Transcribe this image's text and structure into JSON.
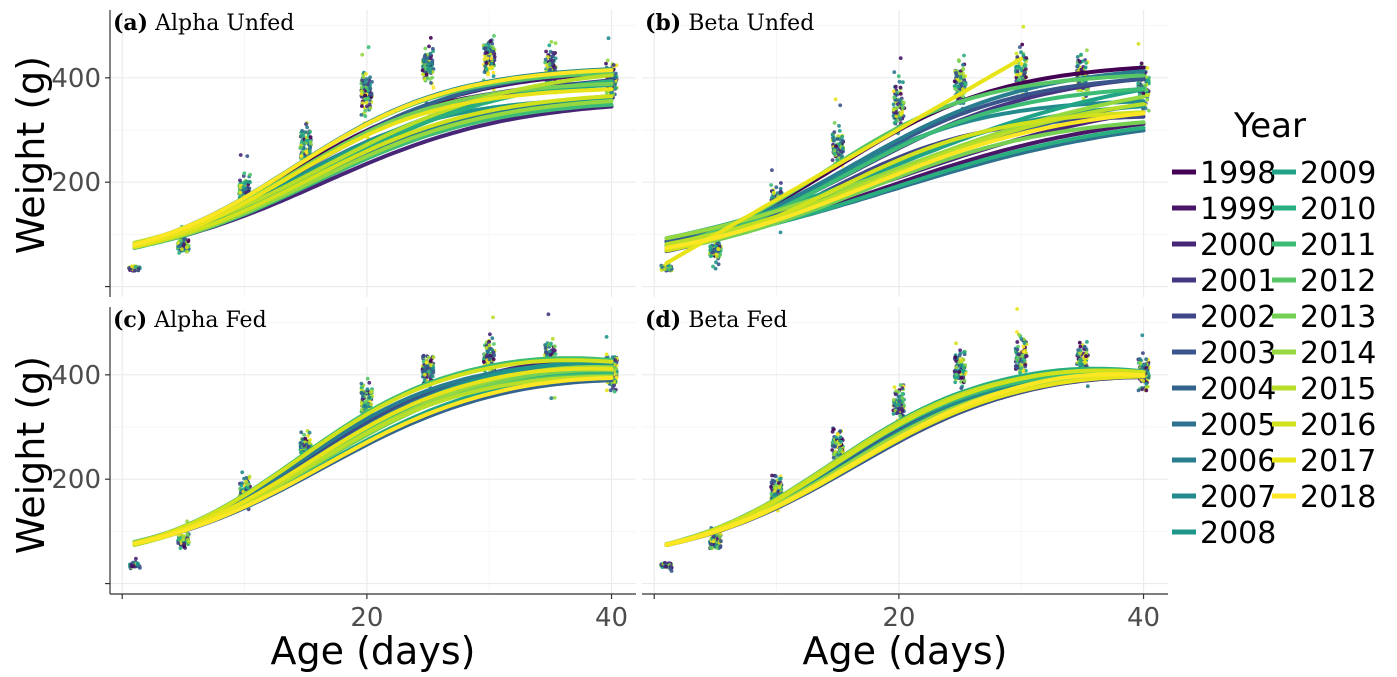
{
  "chart_data": {
    "type": "scatter",
    "description_note": "",
    "xlabel": "Age (days)",
    "ylabel": "Weight (g)",
    "xlim": [
      -1,
      42
    ],
    "ylim": [
      -20,
      530
    ],
    "x_ticks": [
      20,
      40
    ],
    "y_ticks": [
      200,
      400
    ],
    "x_sample_days": [
      1,
      5,
      10,
      15,
      20,
      25,
      30,
      35,
      40
    ],
    "grid": true,
    "legend": {
      "title": "Year",
      "placement": "right",
      "years": [
        "1998",
        "1999",
        "2000",
        "2001",
        "2002",
        "2003",
        "2004",
        "2005",
        "2006",
        "2007",
        "2008",
        "2009",
        "2010",
        "2011",
        "2012",
        "2013",
        "2014",
        "2015",
        "2016",
        "2017",
        "2018"
      ],
      "colors": [
        "#440154",
        "#481567",
        "#482677",
        "#453781",
        "#3f4788",
        "#39558c",
        "#32648e",
        "#2d718e",
        "#287d8e",
        "#238a8d",
        "#1f968b",
        "#20a386",
        "#29af7f",
        "#3cbc75",
        "#56c667",
        "#75d054",
        "#95d840",
        "#b8de29",
        "#d1e11c",
        "#e8e419",
        "#fde725"
      ]
    },
    "panels": [
      {
        "id": "a",
        "tag": "(a)",
        "name": "Alpha Unfed",
        "point_means": [
          35,
          78,
          185,
          270,
          370,
          420,
          440,
          415,
          395
        ],
        "point_spread": [
          8,
          22,
          45,
          55,
          60,
          55,
          55,
          60,
          55
        ],
        "curve": {
          "K_min": 360,
          "K_max": 425,
          "r_min": 0.125,
          "r_max": 0.16,
          "t0_min": 13.5,
          "t0_max": 16.5,
          "decline": 0.0
        }
      },
      {
        "id": "b",
        "tag": "(b)",
        "name": "Beta Unfed",
        "point_means": [
          35,
          70,
          165,
          265,
          340,
          390,
          410,
          400,
          385
        ],
        "point_spread": [
          8,
          22,
          40,
          55,
          65,
          60,
          65,
          70,
          60
        ],
        "curve": {
          "K_min": 330,
          "K_max": 430,
          "r_min": 0.09,
          "r_max": 0.16,
          "t0_min": 14.0,
          "t0_max": 20.0,
          "decline": 0.0
        }
      },
      {
        "id": "c",
        "tag": "(c)",
        "name": "Alpha Fed",
        "point_means": [
          35,
          85,
          175,
          255,
          345,
          410,
          435,
          430,
          405
        ],
        "point_spread": [
          8,
          22,
          45,
          55,
          55,
          55,
          55,
          50,
          50
        ],
        "curve": {
          "K_min": 410,
          "K_max": 450,
          "r_min": 0.135,
          "r_max": 0.16,
          "t0_min": 14.5,
          "t0_max": 16.5,
          "decline": 0.6
        }
      },
      {
        "id": "d",
        "tag": "(d)",
        "name": "Beta Fed",
        "point_means": [
          35,
          80,
          175,
          260,
          345,
          410,
          435,
          425,
          405
        ],
        "point_spread": [
          8,
          22,
          45,
          55,
          55,
          55,
          55,
          50,
          45
        ],
        "curve": {
          "K_min": 415,
          "K_max": 430,
          "r_min": 0.14,
          "r_max": 0.16,
          "t0_min": 14.5,
          "t0_max": 16.5,
          "decline": 0.7
        }
      }
    ]
  }
}
